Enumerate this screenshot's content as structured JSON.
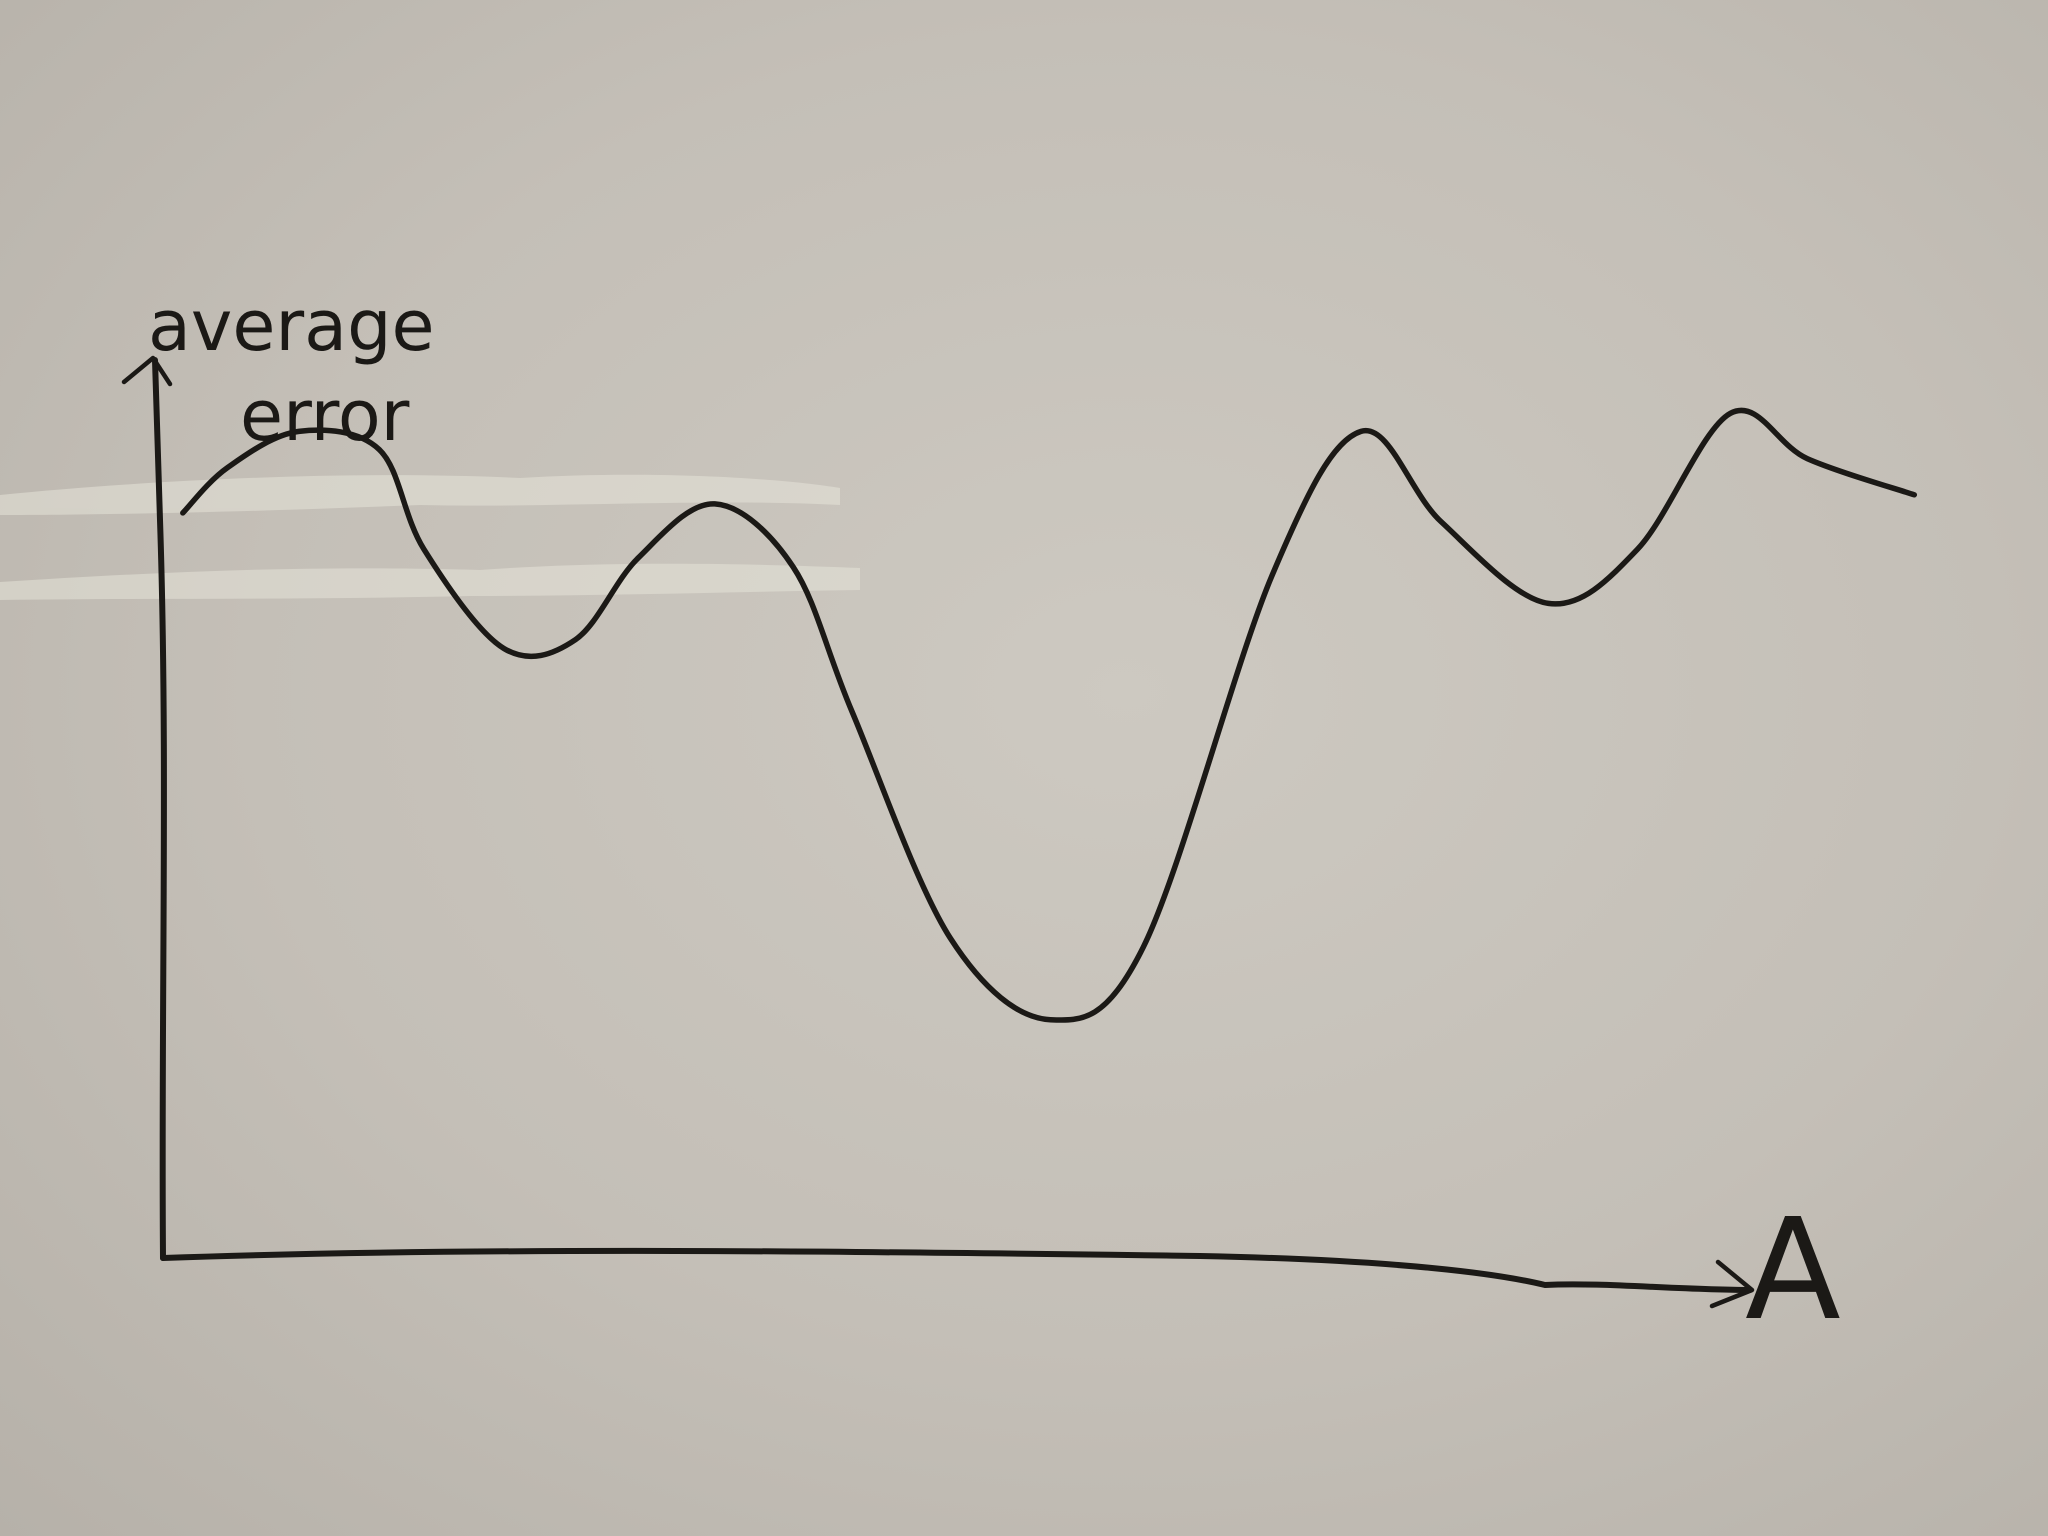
{
  "chart_data": {
    "type": "line",
    "title": "",
    "xlabel": "A",
    "ylabel": "average error",
    "ylabel_lines": [
      "average",
      "error"
    ],
    "grid": false,
    "legend": "none",
    "xlim": [
      0,
      1
    ],
    "ylim": [
      0,
      1
    ],
    "series": [
      {
        "points": [
          [
            0.01,
            0.82
          ],
          [
            0.035,
            0.87
          ],
          [
            0.075,
            0.91
          ],
          [
            0.12,
            0.89
          ],
          [
            0.145,
            0.78
          ],
          [
            0.19,
            0.67
          ],
          [
            0.23,
            0.68
          ],
          [
            0.265,
            0.77
          ],
          [
            0.308,
            0.83
          ],
          [
            0.352,
            0.76
          ],
          [
            0.385,
            0.6
          ],
          [
            0.44,
            0.35
          ],
          [
            0.496,
            0.26
          ],
          [
            0.548,
            0.34
          ],
          [
            0.62,
            0.75
          ],
          [
            0.67,
            0.91
          ],
          [
            0.715,
            0.81
          ],
          [
            0.775,
            0.72
          ],
          [
            0.825,
            0.78
          ],
          [
            0.877,
            0.93
          ],
          [
            0.92,
            0.88
          ],
          [
            0.98,
            0.84
          ]
        ]
      }
    ],
    "colors": {
      "board": "#c4bfb7",
      "marker": "#1b1916",
      "smudge": "#e3e1d6"
    }
  }
}
